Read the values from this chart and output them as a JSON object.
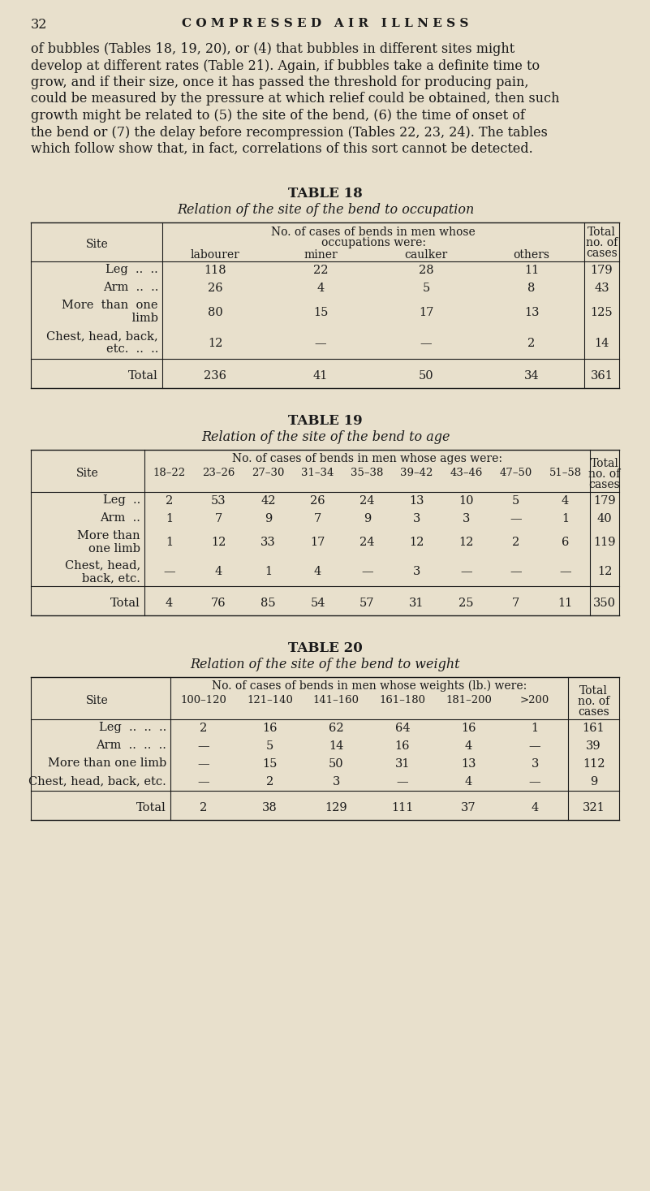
{
  "bg_color": "#e8e0cc",
  "text_color": "#1a1a1a",
  "page_number": "32",
  "header": "C O M P R E S S E D   A I R   I L L N E S S",
  "para_lines": [
    "of bubbles (Tables 18, 19, 20), or (4) that bubbles in different sites might",
    "develop at different rates (Table 21). Again, if bubbles take a definite time to",
    "grow, and if their size, once it has passed the threshold for producing pain,",
    "could be measured by the pressure at which relief could be obtained, then such",
    "growth might be related to (5) the site of the bend, (6) the time of onset of",
    "the bend or (7) the delay before recompression (Tables 22, 23, 24). The tables",
    "which follow show that, in fact, correlations of this sort cannot be detected."
  ],
  "table18": {
    "title": "TABLE 18",
    "subtitle": "Relation of the site of the bend to occupation",
    "col_header_line1": "No. of cases of bends in men whose",
    "col_header_line2": "occupations were:",
    "sub_headers": [
      "labourer",
      "miner",
      "caulker",
      "others"
    ],
    "total_header": [
      "Total",
      "no. of",
      "cases"
    ],
    "site_texts": [
      [
        "Leg  ..  .."
      ],
      [
        "Arm  ..  .."
      ],
      [
        "More  than  one",
        " limb"
      ],
      [
        "Chest, head, back,",
        "etc.  ..  .."
      ]
    ],
    "row_sizes": [
      22,
      22,
      38,
      38
    ],
    "data": [
      [
        "118",
        "22",
        "28",
        "11",
        "179"
      ],
      [
        "26",
        "4",
        "5",
        "8",
        "43"
      ],
      [
        "80",
        "15",
        "17",
        "13",
        "125"
      ],
      [
        "12",
        "—",
        "—",
        "2",
        "14"
      ],
      [
        "236",
        "41",
        "50",
        "34",
        "361"
      ]
    ]
  },
  "table19": {
    "title": "TABLE 19",
    "subtitle": "Relation of the site of the bend to age",
    "col_header_line1": "No. of cases of bends in men whose ages were:",
    "age_cols": [
      "18–22",
      "23–26",
      "27–30",
      "31–34",
      "35–38",
      "39–42",
      "43–46",
      "47–50",
      "51–58"
    ],
    "total_header": [
      "Total",
      "no. of",
      "cases"
    ],
    "site_texts": [
      [
        "Leg  .."
      ],
      [
        "Arm  .."
      ],
      [
        "More than",
        "one limb"
      ],
      [
        "Chest, head,",
        "back, etc."
      ]
    ],
    "row_sizes": [
      22,
      22,
      36,
      36
    ],
    "data": [
      [
        "2",
        "53",
        "42",
        "26",
        "24",
        "13",
        "10",
        "5",
        "4",
        "179"
      ],
      [
        "1",
        "7",
        "9",
        "7",
        "9",
        "3",
        "3",
        "—",
        "1",
        "40"
      ],
      [
        "1",
        "12",
        "33",
        "17",
        "24",
        "12",
        "12",
        "2",
        "6",
        "119"
      ],
      [
        "—",
        "4",
        "1",
        "4",
        "—",
        "3",
        "—",
        "—",
        "—",
        "12"
      ],
      [
        "4",
        "76",
        "85",
        "54",
        "57",
        "31",
        "25",
        "7",
        "11",
        "350"
      ]
    ]
  },
  "table20": {
    "title": "TABLE 20",
    "subtitle": "Relation of the site of the bend to weight",
    "col_header_line1": "No. of cases of bends in men whose weights (lb.) were:",
    "weight_cols": [
      "100–120",
      "121–140",
      "141–160",
      "161–180",
      "181–200",
      ">200"
    ],
    "total_header": [
      "Total",
      "no. of",
      "cases"
    ],
    "site_texts": [
      [
        "Leg  ..  ..  .."
      ],
      [
        "Arm  ..  ..  .."
      ],
      [
        "More than one limb"
      ],
      [
        "Chest, head, back, etc."
      ]
    ],
    "row_sizes": [
      22,
      22,
      22,
      22
    ],
    "data": [
      [
        "2",
        "16",
        "62",
        "64",
        "16",
        "1",
        "161"
      ],
      [
        "—",
        "5",
        "14",
        "16",
        "4",
        "—",
        "39"
      ],
      [
        "—",
        "15",
        "50",
        "31",
        "13",
        "3",
        "112"
      ],
      [
        "—",
        "2",
        "3",
        "—",
        "4",
        "—",
        "9"
      ],
      [
        "2",
        "38",
        "129",
        "111",
        "37",
        "4",
        "321"
      ]
    ]
  }
}
